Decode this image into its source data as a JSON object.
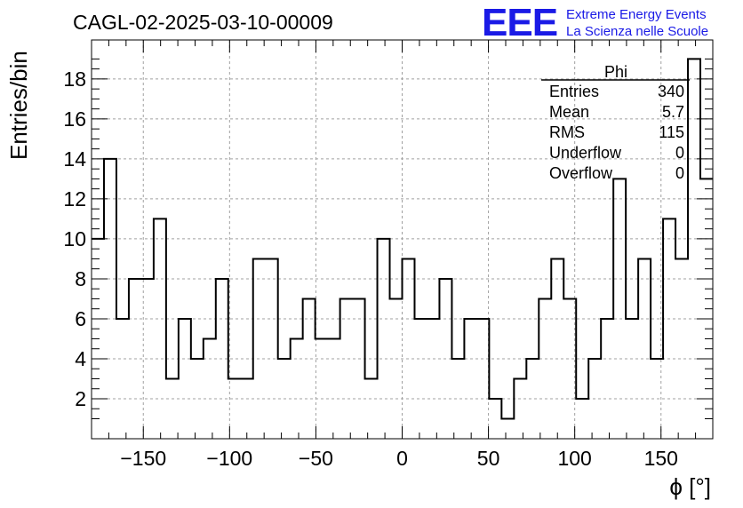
{
  "chart_data": {
    "type": "bar",
    "histogram_style": "step",
    "title": "CAGL-02-2025-03-10-00009",
    "xlabel": "ϕ [°]",
    "ylabel": "Entries/bin",
    "xlim": [
      -180,
      180
    ],
    "ylim": [
      0,
      19.95
    ],
    "bin_width": 7.2,
    "grid": true,
    "x_ticks": [
      -150,
      -100,
      -50,
      0,
      50,
      100,
      150
    ],
    "x_tick_labels": [
      "−150",
      "−100",
      "−50",
      "0",
      "50",
      "100",
      "150"
    ],
    "y_ticks": [
      2,
      4,
      6,
      8,
      10,
      12,
      14,
      16,
      18
    ],
    "y_tick_labels": [
      "2",
      "4",
      "6",
      "8",
      "10",
      "12",
      "14",
      "16",
      "18"
    ],
    "bin_edges": [
      -172.8,
      -165.6,
      -158.4,
      -151.2,
      -144,
      -136.8,
      -129.6,
      -122.4,
      -115.2,
      -108,
      -100.8,
      -93.6,
      -86.4,
      -79.2,
      -72,
      -64.8,
      -57.6,
      -50.4,
      -43.2,
      -36,
      -28.8,
      -21.6,
      -14.4,
      -7.2,
      0,
      7.2,
      14.4,
      21.6,
      28.8,
      36,
      43.2,
      50.4,
      57.6,
      64.8,
      72,
      79.2,
      86.4,
      93.6,
      100.8,
      108,
      115.2,
      122.4,
      129.6,
      136.8,
      144,
      151.2,
      158.4,
      165.6,
      172.8
    ],
    "values": [
      14,
      6,
      8,
      8,
      11,
      3,
      6,
      4,
      5,
      8,
      3,
      3,
      9,
      9,
      4,
      5,
      7,
      5,
      5,
      7,
      7,
      3,
      10,
      7,
      9,
      6,
      6,
      8,
      4,
      6,
      6,
      2,
      1,
      3,
      4,
      7,
      9,
      7,
      2,
      4,
      6,
      13,
      6,
      9,
      4,
      11,
      9,
      19
    ],
    "edge_bins": {
      "first_x_start": -180,
      "first_value": 10,
      "last_x_end": 180,
      "last_value": 13
    },
    "stats_box": {
      "title": "Phi",
      "rows": [
        {
          "label": "Entries",
          "value": "340"
        },
        {
          "label": "Mean",
          "value": "5.7"
        },
        {
          "label": "RMS",
          "value": "115"
        },
        {
          "label": "Underflow",
          "value": "0"
        },
        {
          "label": "Overflow",
          "value": "0"
        }
      ]
    }
  },
  "logo": {
    "mark": "EEE",
    "line1": "Extreme Energy Events",
    "line2": "La Scienza nelle Scuole",
    "color": "#1a1ae6"
  },
  "colors": {
    "line": "#000000",
    "grid": "#a0a0a0",
    "background": "#ffffff"
  }
}
